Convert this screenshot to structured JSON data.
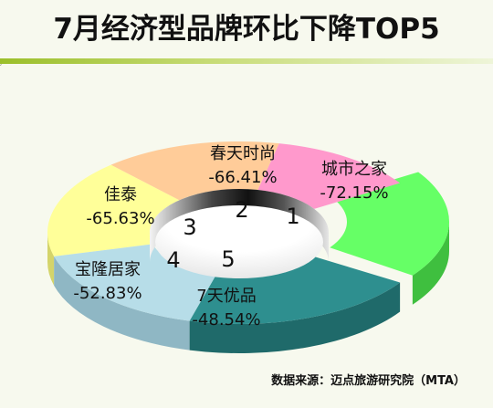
{
  "title": "7月经济型品牌环比下降TOP5",
  "corner_mark": "′",
  "source": "数据来源：迈点旅游研究院（MTA）",
  "chart_data": {
    "type": "pie",
    "title": "7月经济型品牌环比下降TOP5",
    "style": "3d-donut, rank 1 slice exploded",
    "slices": [
      {
        "rank": "1",
        "name": "",
        "value": "",
        "color": "#66ff66"
      },
      {
        "rank": "2",
        "name": "城市之家",
        "value": "-72.15%",
        "color": "#ff99cc"
      },
      {
        "rank": "3",
        "name": "春天时尚",
        "value": "-66.41%",
        "color": "#ffcc99"
      },
      {
        "rank": "4",
        "name": "佳泰",
        "value": "-65.63%",
        "color": "#ffff99"
      },
      {
        "rank": "5",
        "name": "宝隆居家",
        "value": "-52.83%",
        "color": "#b7dde8"
      },
      {
        "rank": "",
        "name": "7天优品",
        "value": "-48.54%",
        "color": "#2e8f8f"
      }
    ]
  }
}
